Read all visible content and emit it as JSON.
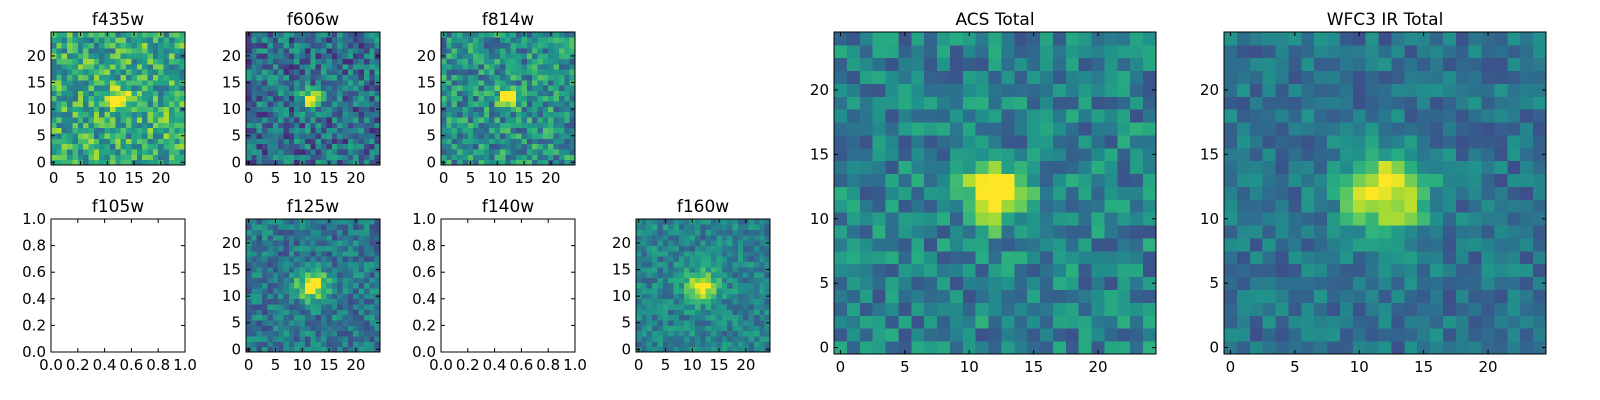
{
  "chart_data": [
    {
      "type": "heatmap",
      "title": "f435w",
      "data_present": true,
      "seed": 11,
      "xlim": [
        -0.5,
        24.5
      ],
      "ylim": [
        -0.5,
        24.5
      ],
      "xticks": [
        0,
        5,
        10,
        15,
        20
      ],
      "yticks": [
        0,
        5,
        10,
        15,
        20
      ],
      "xtick_labels": [
        "0",
        "5",
        "10",
        "15",
        "20"
      ],
      "ytick_labels": [
        "0",
        "5",
        "10",
        "15",
        "20"
      ],
      "source": {
        "x": 12,
        "y": 12,
        "sigma": 1.4,
        "amplitude": 0.55,
        "base": 0.62,
        "noise": 0.26
      },
      "colormap": "viridis"
    },
    {
      "type": "heatmap",
      "title": "f606w",
      "data_present": true,
      "seed": 23,
      "xlim": [
        -0.5,
        24.5
      ],
      "ylim": [
        -0.5,
        24.5
      ],
      "xticks": [
        0,
        5,
        10,
        15,
        20
      ],
      "yticks": [
        0,
        5,
        10,
        15,
        20
      ],
      "xtick_labels": [
        "0",
        "5",
        "10",
        "15",
        "20"
      ],
      "ytick_labels": [
        "0",
        "5",
        "10",
        "15",
        "20"
      ],
      "source": {
        "x": 12,
        "y": 12,
        "sigma": 1.2,
        "amplitude": 0.8,
        "base": 0.38,
        "noise": 0.24
      },
      "colormap": "viridis"
    },
    {
      "type": "heatmap",
      "title": "f814w",
      "data_present": true,
      "seed": 37,
      "xlim": [
        -0.5,
        24.5
      ],
      "ylim": [
        -0.5,
        24.5
      ],
      "xticks": [
        0,
        5,
        10,
        15,
        20
      ],
      "yticks": [
        0,
        5,
        10,
        15,
        20
      ],
      "xtick_labels": [
        "0",
        "5",
        "10",
        "15",
        "20"
      ],
      "ytick_labels": [
        "0",
        "5",
        "10",
        "15",
        "20"
      ],
      "source": {
        "x": 12,
        "y": 12,
        "sigma": 1.2,
        "amplitude": 0.7,
        "base": 0.5,
        "noise": 0.24
      },
      "colormap": "viridis"
    },
    {
      "type": "heatmap",
      "title": "f105w",
      "data_present": false,
      "xlim": [
        0,
        1
      ],
      "ylim": [
        0,
        1
      ],
      "xticks": [
        0,
        0.2,
        0.4,
        0.6,
        0.8,
        1.0
      ],
      "yticks": [
        0,
        0.2,
        0.4,
        0.6,
        0.8,
        1.0
      ],
      "xtick_labels": [
        "0.0",
        "0.2",
        "0.4",
        "0.6",
        "0.8",
        "1.0"
      ],
      "ytick_labels": [
        "0.0",
        "0.2",
        "0.4",
        "0.6",
        "0.8",
        "1.0"
      ]
    },
    {
      "type": "heatmap",
      "title": "f125w",
      "data_present": true,
      "seed": 53,
      "xlim": [
        -0.5,
        24.5
      ],
      "ylim": [
        -0.5,
        24.5
      ],
      "xticks": [
        0,
        5,
        10,
        15,
        20
      ],
      "yticks": [
        0,
        5,
        10,
        15,
        20
      ],
      "xtick_labels": [
        "0",
        "5",
        "10",
        "15",
        "20"
      ],
      "ytick_labels": [
        "0",
        "5",
        "10",
        "15",
        "20"
      ],
      "source": {
        "x": 12,
        "y": 12,
        "sigma": 2.0,
        "amplitude": 0.6,
        "base": 0.4,
        "noise": 0.18
      },
      "colormap": "viridis"
    },
    {
      "type": "heatmap",
      "title": "f140w",
      "data_present": false,
      "xlim": [
        0,
        1
      ],
      "ylim": [
        0,
        1
      ],
      "xticks": [
        0,
        0.2,
        0.4,
        0.6,
        0.8,
        1.0
      ],
      "yticks": [
        0,
        0.2,
        0.4,
        0.6,
        0.8,
        1.0
      ],
      "xtick_labels": [
        "0.0",
        "0.2",
        "0.4",
        "0.6",
        "0.8",
        "1.0"
      ],
      "ytick_labels": [
        "0.0",
        "0.2",
        "0.4",
        "0.6",
        "0.8",
        "1.0"
      ]
    },
    {
      "type": "heatmap",
      "title": "f160w",
      "data_present": true,
      "seed": 71,
      "xlim": [
        -0.5,
        24.5
      ],
      "ylim": [
        -0.5,
        24.5
      ],
      "xticks": [
        0,
        5,
        10,
        15,
        20
      ],
      "yticks": [
        0,
        5,
        10,
        15,
        20
      ],
      "xtick_labels": [
        "0",
        "5",
        "10",
        "15",
        "20"
      ],
      "ytick_labels": [
        "0",
        "5",
        "10",
        "15",
        "20"
      ],
      "source": {
        "x": 12,
        "y": 12,
        "sigma": 2.0,
        "amplitude": 0.55,
        "base": 0.45,
        "noise": 0.16
      },
      "colormap": "viridis"
    },
    {
      "type": "heatmap",
      "title": "ACS Total",
      "data_present": true,
      "seed": 89,
      "xlim": [
        -0.5,
        24.5
      ],
      "ylim": [
        -0.5,
        24.5
      ],
      "xticks": [
        0,
        5,
        10,
        15,
        20
      ],
      "yticks": [
        0,
        5,
        10,
        15,
        20
      ],
      "xtick_labels": [
        "0",
        "5",
        "10",
        "15",
        "20"
      ],
      "ytick_labels": [
        "0",
        "5",
        "10",
        "15",
        "20"
      ],
      "source": {
        "x": 12,
        "y": 12,
        "sigma": 1.5,
        "amplitude": 0.85,
        "base": 0.45,
        "noise": 0.2
      },
      "colormap": "viridis"
    },
    {
      "type": "heatmap",
      "title": "WFC3 IR Total",
      "data_present": true,
      "seed": 97,
      "xlim": [
        -0.5,
        24.5
      ],
      "ylim": [
        -0.5,
        24.5
      ],
      "xticks": [
        0,
        5,
        10,
        15,
        20
      ],
      "yticks": [
        0,
        5,
        10,
        15,
        20
      ],
      "xtick_labels": [
        "0",
        "5",
        "10",
        "15",
        "20"
      ],
      "ytick_labels": [
        "0",
        "5",
        "10",
        "15",
        "20"
      ],
      "source": {
        "x": 12,
        "y": 12,
        "sigma": 2.3,
        "amplitude": 0.65,
        "base": 0.38,
        "noise": 0.14
      },
      "colormap": "viridis"
    }
  ]
}
